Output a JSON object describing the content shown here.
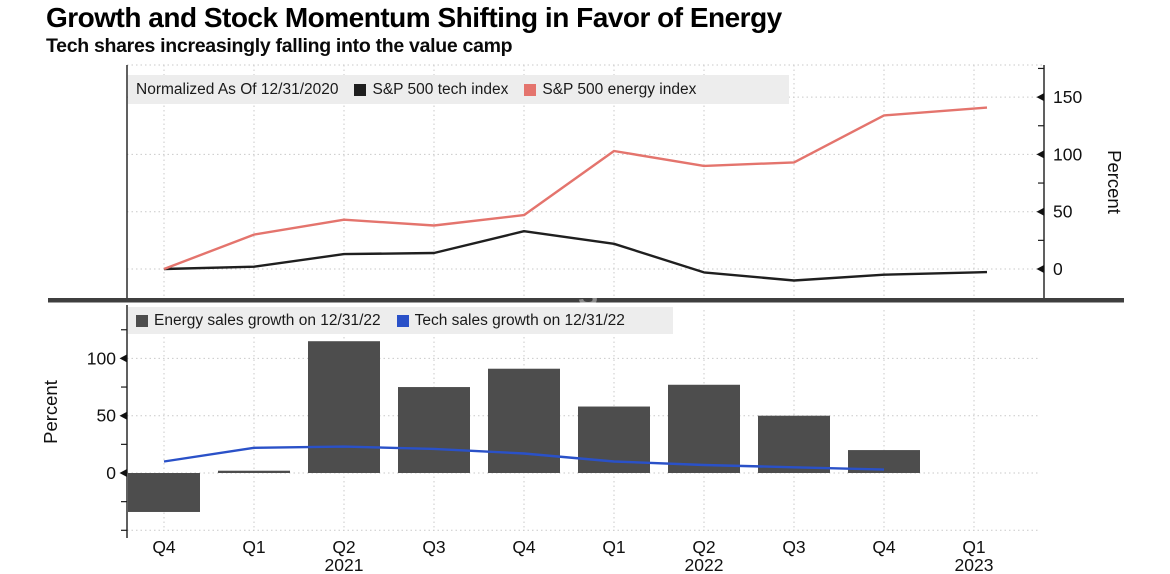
{
  "header": {
    "title": "Growth and Stock Momentum Shifting in Favor of Energy",
    "subtitle": "Tech shares increasingly falling into the value camp"
  },
  "watermark": "S",
  "chart_data": [
    {
      "type": "line",
      "panel": "top",
      "title": "Normalized As Of 12/31/2020",
      "categories": [
        "Q4 2020",
        "Q1 2021",
        "Q2 2021",
        "Q3 2021",
        "Q4 2021",
        "Q1 2022",
        "Q2 2022",
        "Q3 2022",
        "Q4 2022",
        "Q1 2023"
      ],
      "series": [
        {
          "name": "S&P 500 tech index",
          "color": "#1f1f1f",
          "values": [
            0,
            2,
            13,
            14,
            33,
            22,
            -3,
            -10,
            -5,
            -3
          ]
        },
        {
          "name": "S&P 500 energy index",
          "color": "#e4746d",
          "values": [
            0,
            30,
            43,
            38,
            47,
            103,
            90,
            93,
            134,
            140
          ]
        }
      ],
      "ylabel": "Percent",
      "yaxis_side": "right",
      "yticks": [
        0,
        50,
        100,
        150
      ],
      "ylim": [
        -15,
        178
      ],
      "grid": true,
      "legend_position": "top-left"
    },
    {
      "type": "bar+line",
      "panel": "bottom",
      "categories": [
        "Q4 2020",
        "Q1 2021",
        "Q2 2021",
        "Q3 2021",
        "Q4 2021",
        "Q1 2022",
        "Q2 2022",
        "Q3 2022",
        "Q4 2022",
        "Q1 2023"
      ],
      "series": [
        {
          "name": "Energy sales growth on 12/31/22",
          "mark": "bar",
          "color": "#4d4d4d",
          "values": [
            -34,
            2,
            115,
            75,
            91,
            58,
            77,
            50,
            20,
            null
          ]
        },
        {
          "name": "Tech sales growth on 12/31/22",
          "mark": "line",
          "color": "#2a51c8",
          "values": [
            10,
            22,
            23,
            21,
            17,
            10,
            7,
            5,
            3,
            null
          ]
        }
      ],
      "ylabel": "Percent",
      "yaxis_side": "left",
      "yticks": [
        0,
        50,
        100
      ],
      "ylim": [
        -62,
        143
      ],
      "grid": true,
      "legend_position": "top-left"
    }
  ],
  "x_axis": {
    "quarter_labels": [
      "Q4",
      "Q1",
      "Q2",
      "Q3",
      "Q4",
      "Q1",
      "Q2",
      "Q3",
      "Q4",
      "Q1"
    ],
    "year_labels": [
      {
        "text": "2021",
        "index": 2
      },
      {
        "text": "2022",
        "index": 6
      },
      {
        "text": "2023",
        "index": 9
      }
    ]
  }
}
